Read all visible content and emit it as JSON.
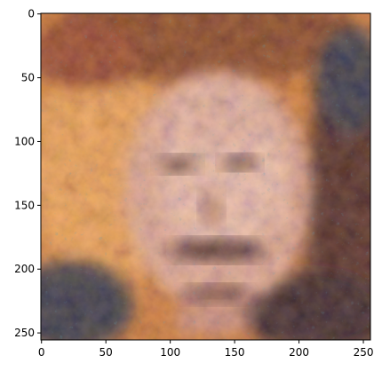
{
  "image": {
    "description_kind": "plotted image (imshow) of a noisy, blotchy face-like texture",
    "colors": {
      "background_left": "#c9762f",
      "warm_orange": "#e8a04e",
      "deep_brown": "#6b3416",
      "rust": "#8a3b1a",
      "dark_navy": "#1d2a3d",
      "teal_speck": "#3c8c9c",
      "skin_pink": "#d9a894",
      "skin_light": "#e6bfae",
      "shadow_dark": "#2a1a14"
    }
  },
  "axes": {
    "x_ticks": [
      "0",
      "50",
      "100",
      "150",
      "200",
      "250"
    ],
    "y_ticks": [
      "0",
      "50",
      "100",
      "150",
      "200",
      "250"
    ],
    "xlim": [
      0,
      256
    ],
    "ylim": [
      256,
      0
    ]
  }
}
